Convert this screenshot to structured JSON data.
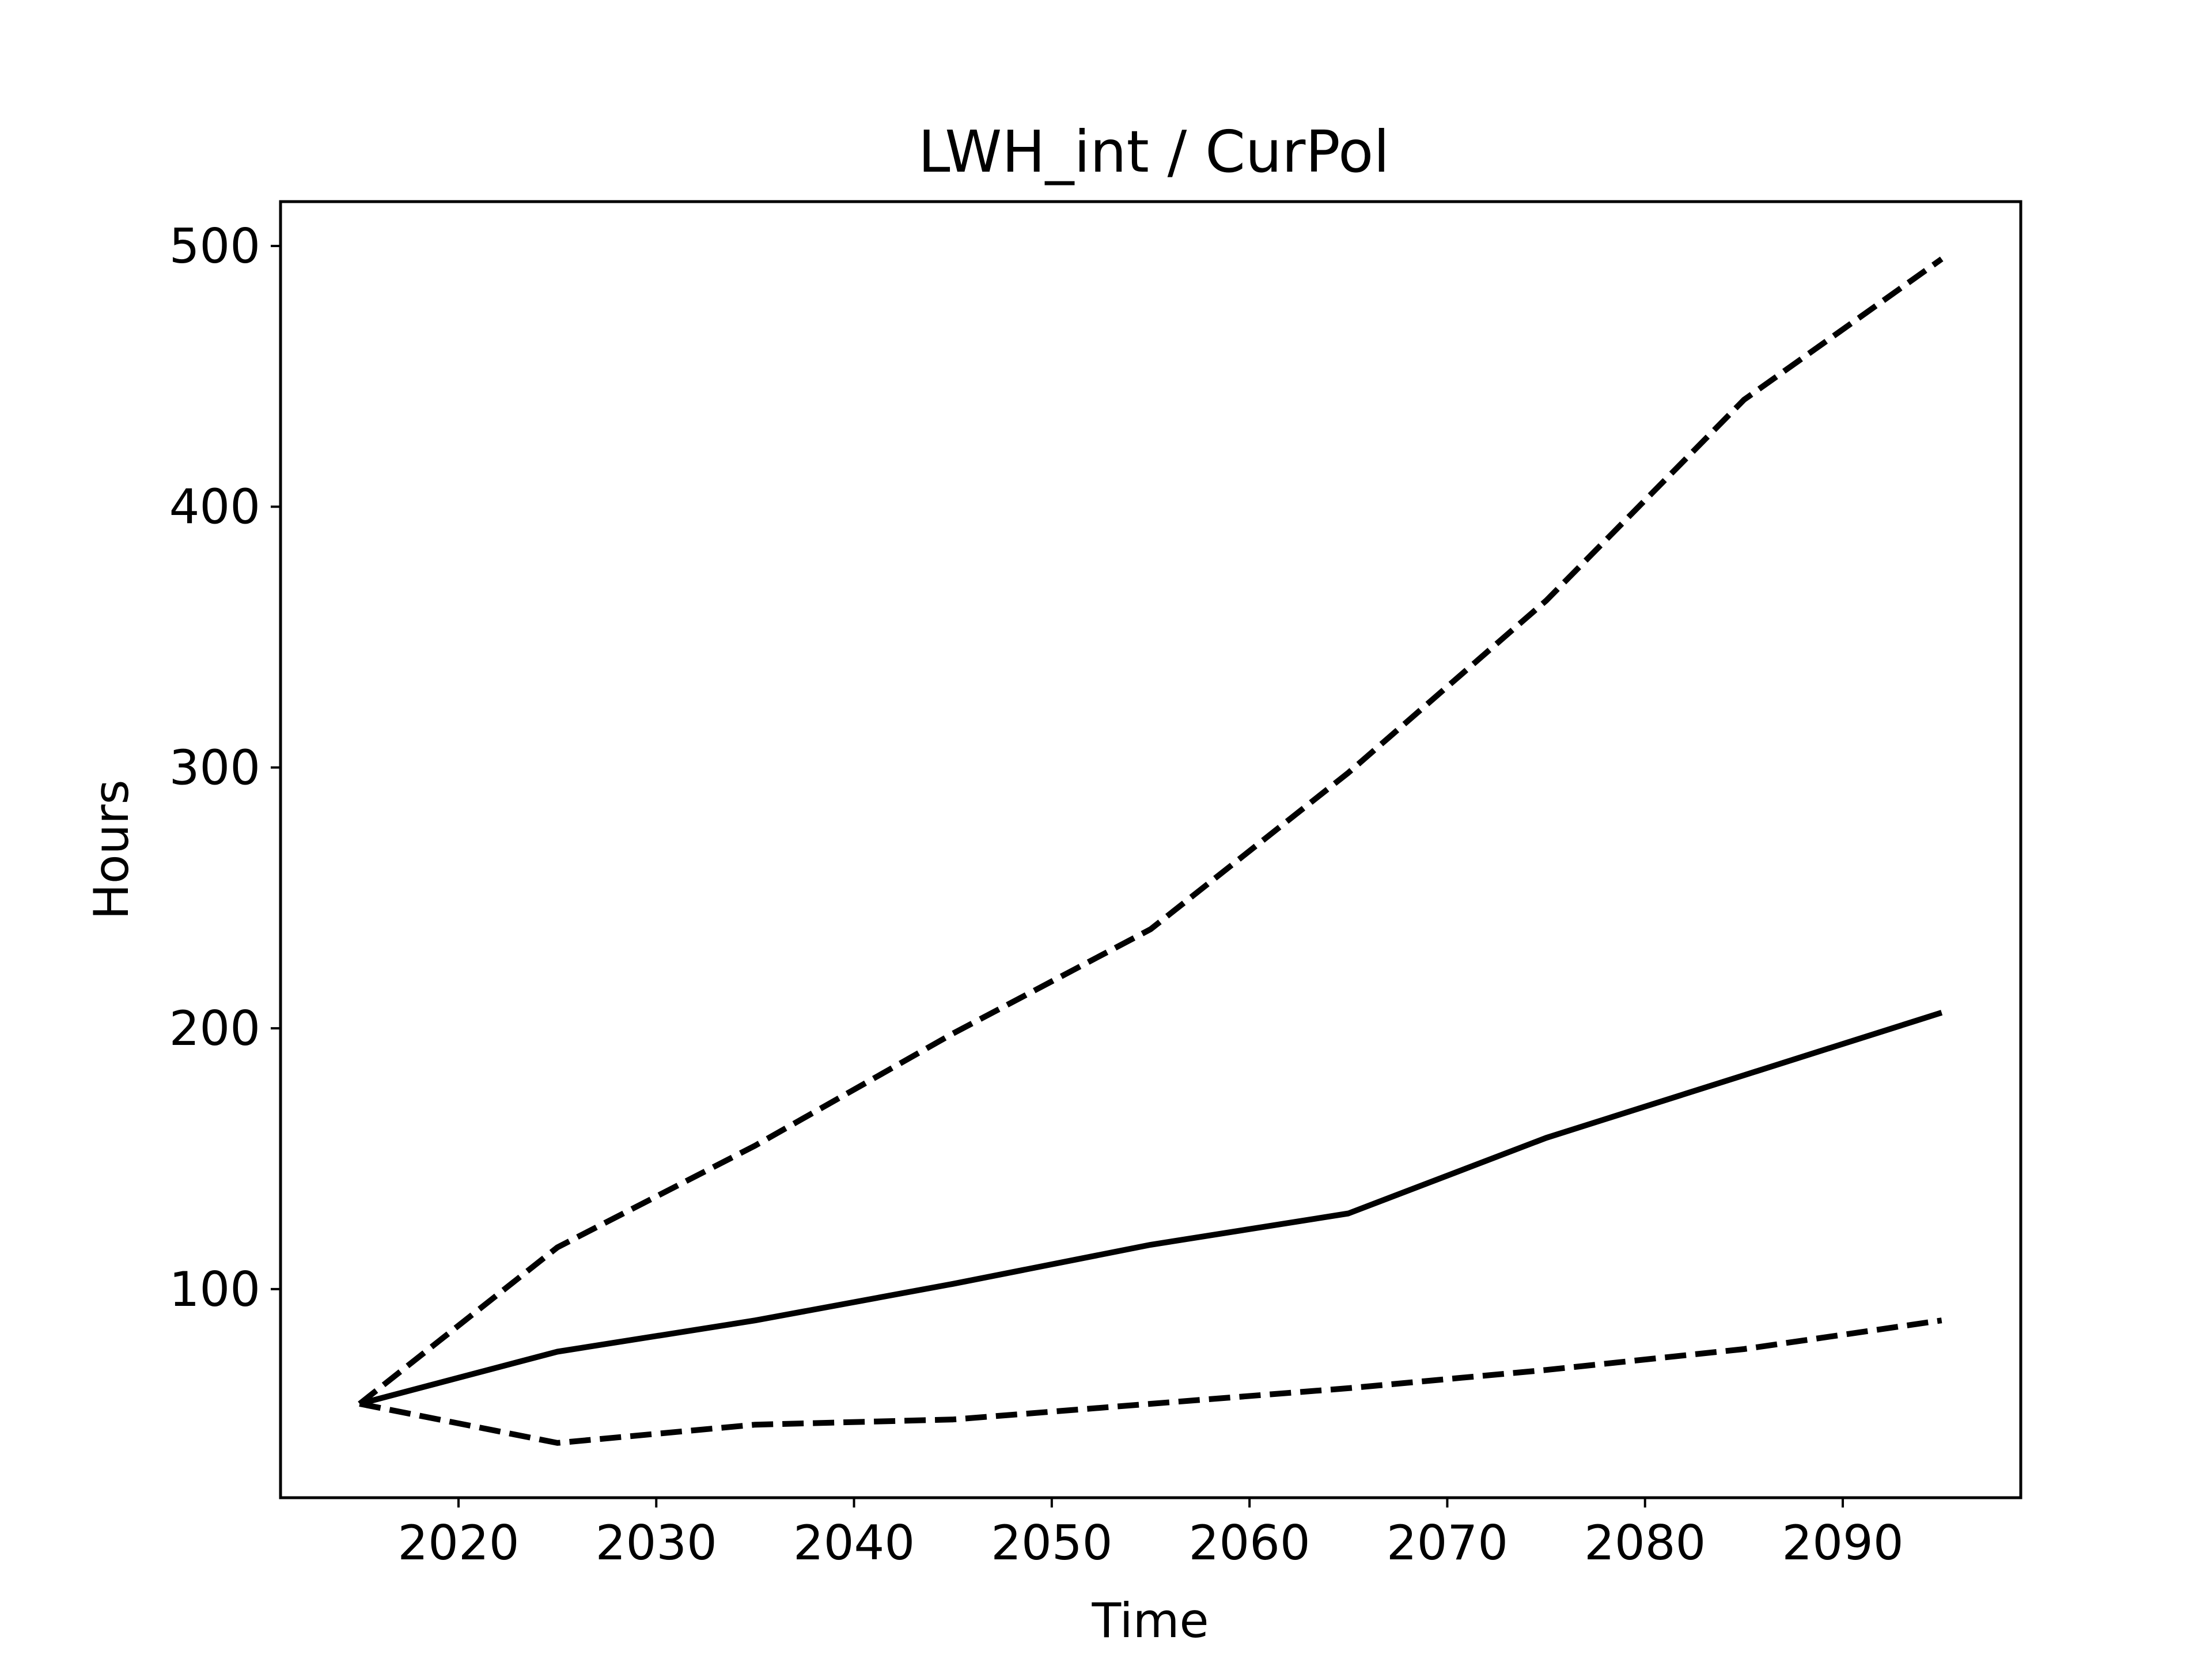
{
  "chart_data": {
    "type": "line",
    "title": "LWH_int / CurPol",
    "xlabel": "Time",
    "ylabel": "Hours",
    "xlim": [
      2011,
      2099
    ],
    "ylim": [
      20,
      517
    ],
    "x_ticks": [
      "2020",
      "2030",
      "2040",
      "2050",
      "2060",
      "2070",
      "2080",
      "2090"
    ],
    "y_ticks": [
      "100",
      "200",
      "300",
      "400",
      "500"
    ],
    "grid": false,
    "legend": "none",
    "x": [
      2015,
      2025,
      2035,
      2045,
      2055,
      2065,
      2075,
      2085,
      2095
    ],
    "series": [
      {
        "style": "solid",
        "color": "#000000",
        "values": [
          56,
          76,
          88,
          102,
          117,
          129,
          158,
          182,
          206
        ]
      },
      {
        "style": "dashed",
        "color": "#000000",
        "values": [
          56,
          116,
          155,
          198,
          238,
          298,
          364,
          441,
          495
        ]
      },
      {
        "style": "dashed",
        "color": "#000000",
        "values": [
          56,
          41,
          48,
          50,
          56,
          62,
          69,
          77,
          88
        ]
      }
    ]
  }
}
